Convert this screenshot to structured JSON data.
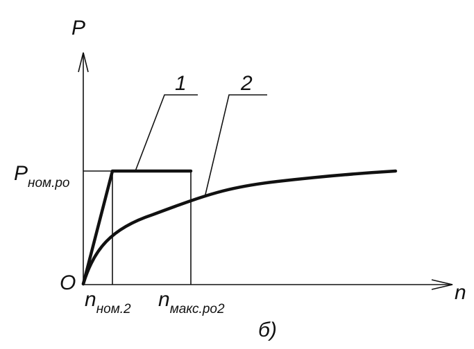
{
  "axes": {
    "y_label": "P",
    "x_label": "n",
    "origin": "O"
  },
  "levels": {
    "p_nom": {
      "main": "P",
      "sub": "ном.ро"
    }
  },
  "x_marks": [
    {
      "main": "n",
      "sub": "ном.2"
    },
    {
      "main": "n",
      "sub": "макс.ро2"
    }
  ],
  "curves": [
    {
      "label": "1"
    },
    {
      "label": "2"
    }
  ],
  "caption": "б)"
}
